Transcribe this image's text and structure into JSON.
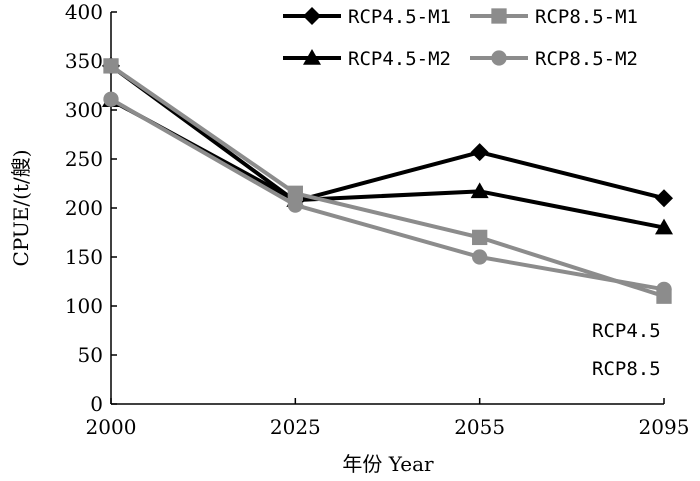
{
  "chart_data": {
    "type": "line",
    "title": "",
    "xlabel": "年份 Year",
    "ylabel": "CPUE/(t/艘)",
    "x": [
      "2000",
      "2025",
      "2055",
      "2095"
    ],
    "ylim": [
      0,
      400
    ],
    "yticks": [
      "0",
      "50",
      "100",
      "150",
      "200",
      "250",
      "300",
      "350",
      "400"
    ],
    "series": [
      {
        "name": "RCP4.5-M1",
        "values": [
          345,
          207,
          257,
          210
        ],
        "color": "#000000",
        "marker": "diamond"
      },
      {
        "name": "RCP8.5-M1",
        "values": [
          345,
          215,
          170,
          110
        ],
        "color": "#8c8c8c",
        "marker": "square"
      },
      {
        "name": "RCP4.5-M2",
        "values": [
          310,
          208,
          217,
          180
        ],
        "color": "#000000",
        "marker": "triangle"
      },
      {
        "name": "RCP8.5-M2",
        "values": [
          311,
          203,
          150,
          117
        ],
        "color": "#8c8c8c",
        "marker": "circle"
      }
    ],
    "legend": "top-right",
    "annotations": [
      "RCP4.5",
      "RCP8.5"
    ],
    "grid": false
  }
}
